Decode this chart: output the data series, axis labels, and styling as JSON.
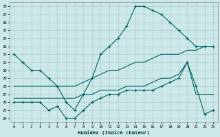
{
  "title": "",
  "xlabel": "Humidex (Indice chaleur)",
  "xlim": [
    -0.5,
    23.5
  ],
  "ylim": [
    23.5,
    38.5
  ],
  "yticks": [
    24,
    25,
    26,
    27,
    28,
    29,
    30,
    31,
    32,
    33,
    34,
    35,
    36,
    37,
    38
  ],
  "xticks": [
    0,
    1,
    2,
    3,
    4,
    5,
    6,
    7,
    8,
    9,
    10,
    11,
    12,
    13,
    14,
    15,
    16,
    17,
    18,
    19,
    20,
    21,
    22,
    23
  ],
  "bg_color": "#cce8e8",
  "grid_color": "#aacccc",
  "line_color": "#006060",
  "lines": [
    {
      "x": [
        0,
        1,
        2,
        3,
        4,
        5,
        6,
        7,
        8,
        9,
        10,
        11,
        12,
        13,
        14,
        15,
        16,
        17,
        18,
        19,
        20,
        21,
        22,
        23
      ],
      "y": [
        32,
        31,
        30,
        30,
        29,
        28,
        26,
        25,
        27,
        29,
        32,
        33,
        34,
        35.5,
        38,
        38,
        37.5,
        37,
        36,
        35,
        34,
        33,
        33,
        33
      ],
      "marker": true
    },
    {
      "x": [
        0,
        1,
        2,
        3,
        4,
        5,
        6,
        7,
        8,
        9,
        10,
        11,
        12,
        13,
        14,
        15,
        16,
        17,
        18,
        19,
        20,
        21,
        22,
        23
      ],
      "y": [
        28,
        28,
        28,
        28,
        28,
        28,
        28,
        28,
        28.5,
        29,
        29.5,
        30,
        30,
        30.5,
        31,
        31,
        31.5,
        32,
        32,
        32,
        32.5,
        32.5,
        33,
        33
      ],
      "marker": false
    },
    {
      "x": [
        0,
        1,
        2,
        3,
        4,
        5,
        6,
        7,
        8,
        9,
        10,
        11,
        12,
        13,
        14,
        15,
        16,
        17,
        18,
        19,
        20,
        21,
        22,
        23
      ],
      "y": [
        26.5,
        26.5,
        26.5,
        26.5,
        26.5,
        26.5,
        26.5,
        26.5,
        27,
        27,
        27.5,
        27.5,
        27.5,
        28,
        28,
        28,
        28.5,
        29,
        29,
        29.5,
        31,
        27,
        27,
        27
      ],
      "marker": false
    },
    {
      "x": [
        0,
        1,
        2,
        3,
        4,
        5,
        6,
        7,
        8,
        9,
        10,
        11,
        12,
        13,
        14,
        15,
        16,
        17,
        18,
        19,
        20,
        21,
        22,
        23
      ],
      "y": [
        26,
        26,
        26,
        26,
        25,
        25.5,
        24,
        24,
        25,
        26,
        26.5,
        27,
        27,
        27.5,
        27.5,
        27.5,
        27.5,
        28,
        28.5,
        29,
        31,
        28,
        24.5,
        25
      ],
      "marker": true
    }
  ]
}
